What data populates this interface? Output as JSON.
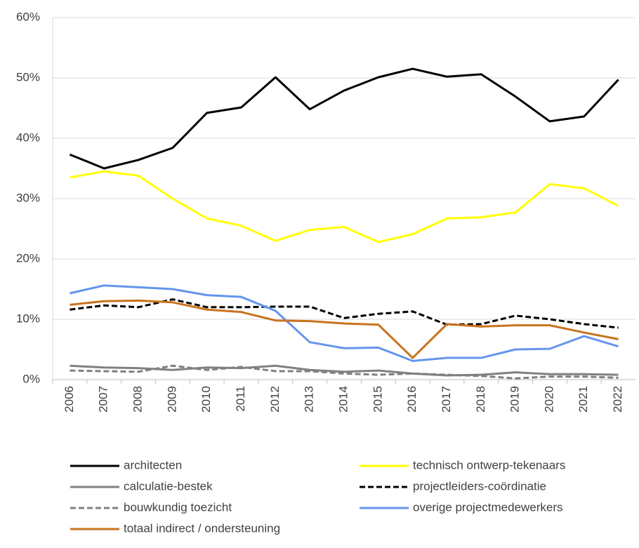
{
  "chart_data": {
    "type": "line",
    "categories": [
      "2006",
      "2007",
      "2008",
      "2009",
      "2010",
      "2011",
      "2012",
      "2013",
      "2014",
      "2015",
      "2016",
      "2017",
      "2018",
      "2019",
      "2020",
      "2021",
      "2022"
    ],
    "ylim": [
      0,
      60
    ],
    "yticks": [
      {
        "value": 0,
        "label": "0%"
      },
      {
        "value": 10,
        "label": "10%"
      },
      {
        "value": 20,
        "label": "20%"
      },
      {
        "value": 30,
        "label": "30%"
      },
      {
        "value": 40,
        "label": "40%"
      },
      {
        "value": 50,
        "label": "50%"
      },
      {
        "value": 60,
        "label": "60%"
      }
    ],
    "grid": true,
    "legend": "bottom",
    "series": [
      {
        "name": "architecten",
        "color": "#000000",
        "dashed": false,
        "values": [
          37.3,
          35.0,
          36.4,
          38.4,
          44.2,
          45.1,
          50.1,
          44.8,
          47.9,
          50.1,
          51.5,
          50.2,
          50.6,
          46.9,
          42.8,
          43.6,
          49.7
        ]
      },
      {
        "name": "technisch ontwerp-tekenaars",
        "color": "#ffff00",
        "dashed": false,
        "values": [
          33.5,
          34.5,
          33.8,
          30.0,
          26.7,
          25.5,
          23.0,
          24.8,
          25.3,
          22.8,
          24.1,
          26.7,
          26.9,
          27.7,
          32.4,
          31.7,
          28.8
        ]
      },
      {
        "name": "calculatie-bestek",
        "color": "#808080",
        "dashed": false,
        "values": [
          2.3,
          2.0,
          1.9,
          1.6,
          2.0,
          1.9,
          2.3,
          1.6,
          1.3,
          1.5,
          1.0,
          0.7,
          0.8,
          1.2,
          0.9,
          0.9,
          0.8
        ]
      },
      {
        "name": "projectleiders-coördinatie",
        "color": "#000000",
        "dashed": true,
        "values": [
          11.6,
          12.3,
          12.0,
          13.3,
          12.0,
          12.0,
          12.1,
          12.1,
          10.2,
          10.9,
          11.3,
          9.1,
          9.2,
          10.6,
          10.0,
          9.2,
          8.6
        ]
      },
      {
        "name": "bouwkundig toezicht",
        "color": "#808080",
        "dashed": true,
        "values": [
          1.5,
          1.4,
          1.3,
          2.3,
          1.6,
          2.1,
          1.4,
          1.4,
          1.0,
          0.8,
          1.0,
          0.8,
          0.6,
          0.2,
          0.5,
          0.5,
          0.3
        ]
      },
      {
        "name": "overige projectmedewerkers",
        "color": "#6495ed",
        "dashed": false,
        "values": [
          14.3,
          15.6,
          15.3,
          15.0,
          14.0,
          13.7,
          11.4,
          6.2,
          5.2,
          5.3,
          3.1,
          3.6,
          3.6,
          5.0,
          5.1,
          7.2,
          5.5
        ]
      },
      {
        "name": "totaal indirect / ondersteuning",
        "color": "#c8731e",
        "dashed": false,
        "values": [
          12.4,
          13.0,
          13.1,
          12.8,
          11.6,
          11.2,
          9.8,
          9.7,
          9.3,
          9.1,
          3.6,
          9.2,
          8.8,
          9.0,
          9.0,
          7.8,
          6.7
        ]
      }
    ]
  }
}
